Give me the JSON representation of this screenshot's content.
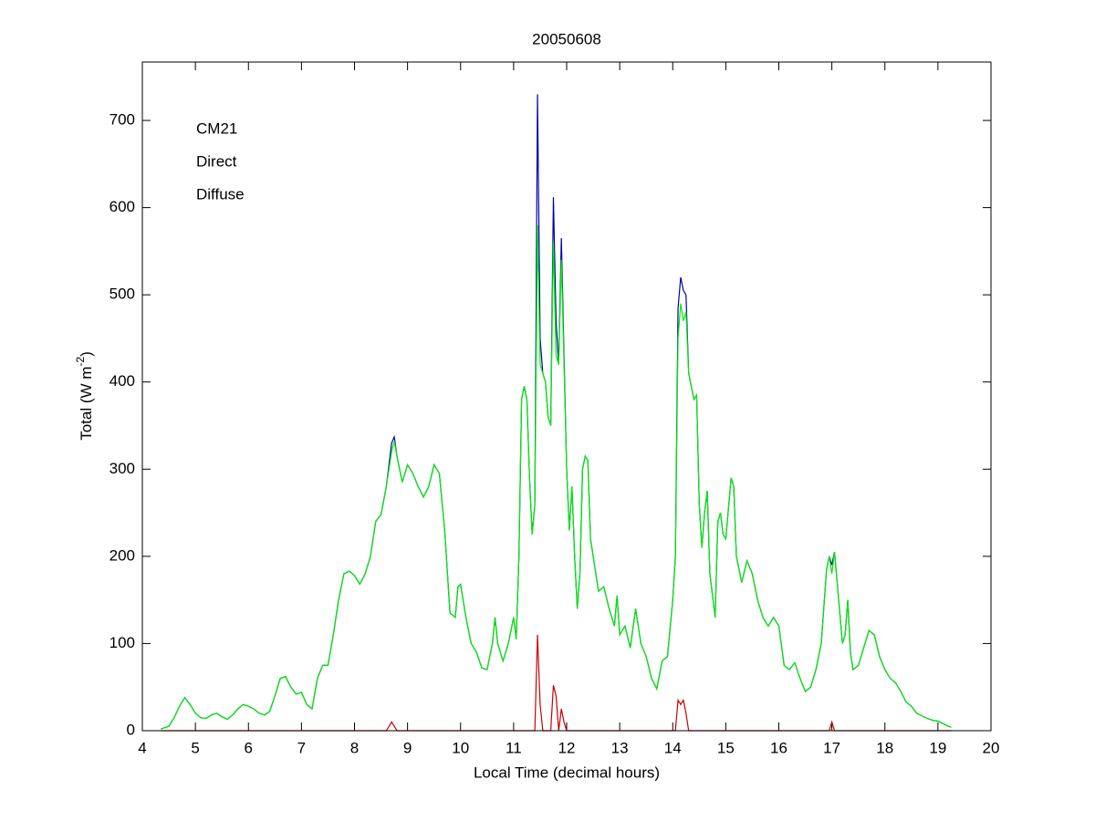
{
  "chart_data": {
    "type": "line",
    "title": "20050608",
    "xlabel": "Local Time (decimal hours)",
    "ylabel": [
      "Total (W m",
      "-2",
      ")"
    ],
    "xlim": [
      4,
      20
    ],
    "xticks": [
      4,
      5,
      6,
      7,
      8,
      9,
      10,
      11,
      12,
      13,
      14,
      15,
      16,
      17,
      18,
      19,
      20
    ],
    "ylim": [
      0,
      767
    ],
    "yticks": [
      0,
      100,
      200,
      300,
      400,
      500,
      600,
      700
    ],
    "legend": "upper left",
    "x": [
      4.35,
      4.5,
      4.6,
      4.7,
      4.8,
      4.9,
      5.0,
      5.1,
      5.2,
      5.3,
      5.4,
      5.5,
      5.6,
      5.7,
      5.8,
      5.9,
      6.0,
      6.1,
      6.2,
      6.3,
      6.4,
      6.5,
      6.6,
      6.7,
      6.8,
      6.9,
      7.0,
      7.1,
      7.2,
      7.3,
      7.4,
      7.5,
      7.6,
      7.7,
      7.8,
      7.9,
      8.0,
      8.1,
      8.2,
      8.3,
      8.4,
      8.5,
      8.6,
      8.7,
      8.75,
      8.8,
      8.9,
      9.0,
      9.1,
      9.2,
      9.3,
      9.4,
      9.5,
      9.6,
      9.7,
      9.8,
      9.9,
      9.95,
      10.0,
      10.1,
      10.2,
      10.3,
      10.4,
      10.5,
      10.6,
      10.65,
      10.7,
      10.8,
      10.9,
      11.0,
      11.05,
      11.1,
      11.15,
      11.2,
      11.25,
      11.3,
      11.35,
      11.4,
      11.45,
      11.5,
      11.55,
      11.6,
      11.65,
      11.7,
      11.75,
      11.8,
      11.85,
      11.9,
      11.95,
      12.0,
      12.05,
      12.1,
      12.15,
      12.2,
      12.25,
      12.3,
      12.35,
      12.4,
      12.45,
      12.5,
      12.6,
      12.7,
      12.8,
      12.9,
      12.95,
      13.0,
      13.1,
      13.2,
      13.3,
      13.4,
      13.5,
      13.6,
      13.7,
      13.8,
      13.9,
      14.0,
      14.05,
      14.1,
      14.15,
      14.2,
      14.25,
      14.3,
      14.4,
      14.45,
      14.5,
      14.55,
      14.6,
      14.65,
      14.7,
      14.8,
      14.85,
      14.9,
      14.95,
      15.0,
      15.1,
      15.15,
      15.2,
      15.3,
      15.4,
      15.5,
      15.6,
      15.7,
      15.8,
      15.9,
      16.0,
      16.1,
      16.2,
      16.3,
      16.4,
      16.5,
      16.6,
      16.7,
      16.8,
      16.9,
      16.95,
      17.0,
      17.05,
      17.1,
      17.2,
      17.25,
      17.3,
      17.35,
      17.4,
      17.5,
      17.6,
      17.7,
      17.8,
      17.9,
      18.0,
      18.1,
      18.2,
      18.3,
      18.4,
      18.5,
      18.6,
      18.7,
      18.8,
      18.9,
      19.0,
      19.1,
      19.2,
      19.25
    ],
    "series": [
      {
        "name": "CM21",
        "color": "#0000aa",
        "values": [
          2,
          5,
          15,
          28,
          38,
          30,
          20,
          15,
          14,
          18,
          20,
          16,
          13,
          18,
          25,
          30,
          28,
          25,
          20,
          18,
          22,
          40,
          60,
          62,
          50,
          42,
          44,
          30,
          25,
          60,
          75,
          75,
          110,
          150,
          180,
          183,
          178,
          168,
          180,
          200,
          240,
          248,
          280,
          330,
          337,
          315,
          285,
          305,
          295,
          280,
          268,
          280,
          305,
          295,
          230,
          135,
          130,
          165,
          168,
          130,
          100,
          90,
          72,
          70,
          100,
          130,
          100,
          80,
          100,
          130,
          105,
          200,
          380,
          395,
          380,
          290,
          225,
          260,
          730,
          450,
          410,
          400,
          360,
          350,
          612,
          470,
          420,
          565,
          430,
          300,
          230,
          280,
          200,
          140,
          180,
          300,
          315,
          310,
          220,
          200,
          160,
          165,
          140,
          120,
          155,
          110,
          120,
          95,
          140,
          100,
          85,
          60,
          48,
          80,
          85,
          150,
          200,
          485,
          520,
          505,
          500,
          410,
          380,
          385,
          260,
          210,
          250,
          275,
          180,
          130,
          240,
          250,
          225,
          220,
          290,
          280,
          200,
          170,
          195,
          180,
          150,
          130,
          120,
          130,
          120,
          75,
          70,
          78,
          60,
          45,
          50,
          70,
          100,
          185,
          200,
          190,
          205,
          170,
          100,
          110,
          150,
          90,
          70,
          75,
          95,
          115,
          110,
          85,
          70,
          60,
          55,
          45,
          33,
          28,
          20,
          17,
          14,
          12,
          11,
          8,
          5,
          4
        ]
      },
      {
        "name": "Direct",
        "color": "#cc0000",
        "values": [
          0,
          0,
          0,
          0,
          0,
          0,
          0,
          0,
          0,
          0,
          0,
          0,
          0,
          0,
          0,
          0,
          0,
          0,
          0,
          0,
          0,
          0,
          0,
          0,
          0,
          0,
          0,
          0,
          0,
          0,
          0,
          0,
          0,
          0,
          0,
          0,
          0,
          0,
          0,
          0,
          0,
          0,
          0,
          10,
          5,
          0,
          0,
          0,
          0,
          0,
          0,
          0,
          0,
          0,
          0,
          0,
          0,
          0,
          0,
          0,
          0,
          0,
          0,
          0,
          0,
          0,
          0,
          0,
          0,
          0,
          0,
          0,
          0,
          0,
          0,
          0,
          0,
          0,
          110,
          30,
          0,
          0,
          0,
          0,
          52,
          40,
          0,
          25,
          10,
          0,
          0,
          0,
          0,
          0,
          0,
          0,
          0,
          0,
          0,
          0,
          0,
          0,
          0,
          0,
          0,
          0,
          0,
          0,
          0,
          0,
          0,
          0,
          0,
          0,
          0,
          0,
          0,
          35,
          30,
          35,
          20,
          0,
          0,
          0,
          0,
          0,
          0,
          0,
          0,
          0,
          0,
          0,
          0,
          0,
          0,
          0,
          0,
          0,
          0,
          0,
          0,
          0,
          0,
          0,
          0,
          0,
          0,
          0,
          0,
          0,
          0,
          0,
          0,
          0,
          0,
          10,
          0,
          0,
          0,
          0,
          0,
          0,
          0,
          0,
          0,
          0,
          0,
          0,
          0,
          0,
          0,
          0,
          0,
          0,
          0,
          0,
          0,
          0,
          0,
          0,
          0,
          0
        ]
      },
      {
        "name": "Diffuse",
        "color": "#00ee00",
        "values": [
          2,
          5,
          15,
          28,
          38,
          30,
          20,
          15,
          14,
          18,
          20,
          16,
          13,
          18,
          25,
          30,
          28,
          25,
          20,
          18,
          22,
          40,
          60,
          62,
          50,
          42,
          44,
          30,
          25,
          60,
          75,
          75,
          110,
          150,
          180,
          183,
          178,
          168,
          180,
          200,
          240,
          248,
          280,
          320,
          332,
          315,
          285,
          305,
          295,
          280,
          268,
          280,
          305,
          295,
          230,
          135,
          130,
          165,
          168,
          130,
          100,
          90,
          72,
          70,
          100,
          130,
          100,
          80,
          100,
          130,
          105,
          200,
          380,
          395,
          380,
          290,
          225,
          260,
          580,
          420,
          410,
          400,
          360,
          350,
          560,
          430,
          420,
          540,
          420,
          300,
          230,
          280,
          200,
          140,
          180,
          300,
          315,
          310,
          220,
          200,
          160,
          165,
          140,
          120,
          155,
          110,
          120,
          95,
          140,
          100,
          85,
          60,
          48,
          80,
          85,
          150,
          200,
          450,
          490,
          470,
          480,
          410,
          380,
          385,
          260,
          210,
          250,
          275,
          180,
          130,
          240,
          250,
          225,
          220,
          290,
          280,
          200,
          170,
          195,
          180,
          150,
          130,
          120,
          130,
          120,
          75,
          70,
          78,
          60,
          45,
          50,
          70,
          100,
          185,
          200,
          180,
          205,
          170,
          100,
          110,
          150,
          90,
          70,
          75,
          95,
          115,
          110,
          85,
          70,
          60,
          55,
          45,
          33,
          28,
          20,
          17,
          14,
          12,
          11,
          8,
          5,
          4
        ]
      }
    ]
  }
}
